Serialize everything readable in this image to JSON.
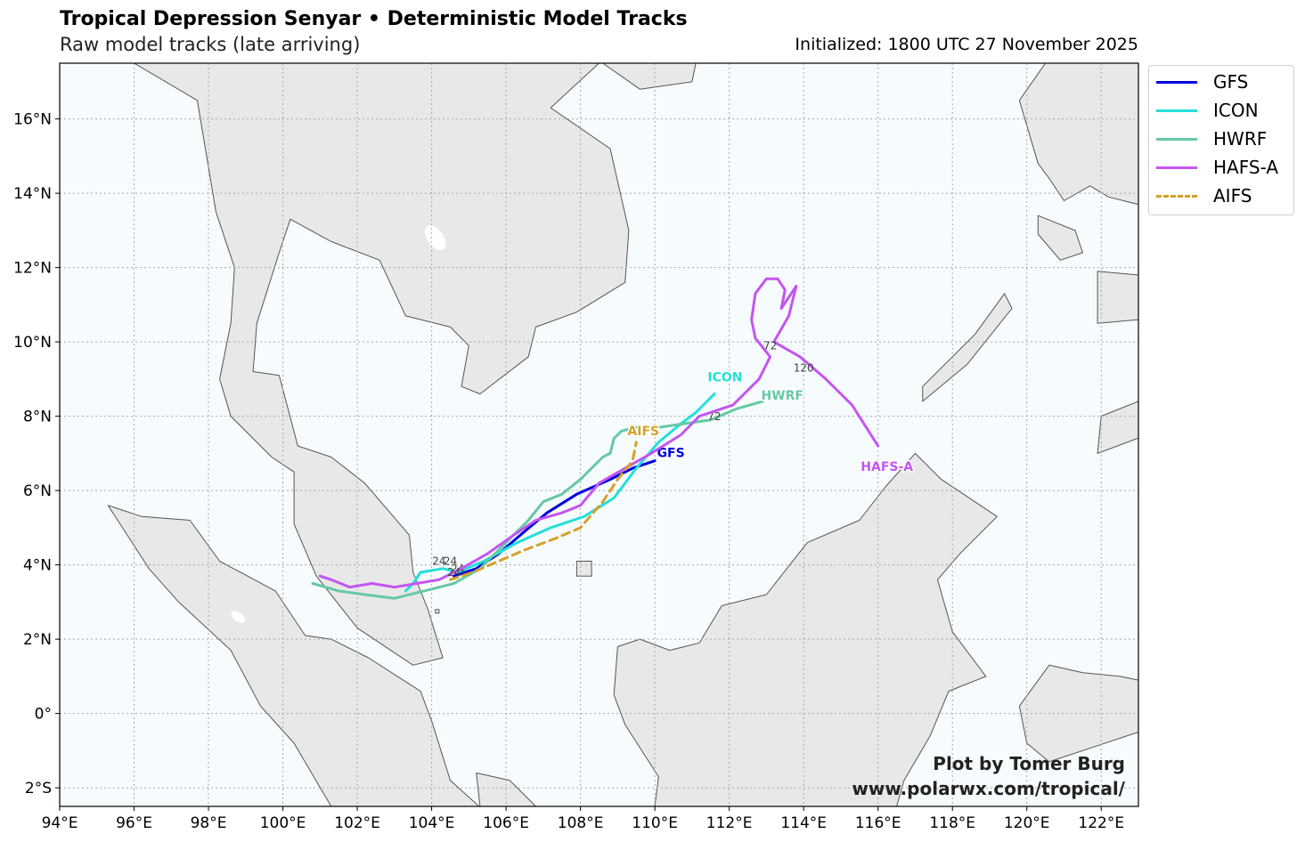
{
  "header": {
    "title": "Tropical Depression Senyar • Deterministic Model Tracks",
    "subtitle": "Raw model tracks (late arriving)",
    "initialized": "Initialized: 1800 UTC 27 November 2025"
  },
  "map": {
    "projection": "PlateCarree",
    "lon_range": [
      94,
      123
    ],
    "lat_range": [
      -2.5,
      17.5
    ],
    "ocean_color": "#f6fbfe",
    "land_color": "#e8e8e8",
    "coast_color": "#555555",
    "grid": "dotted",
    "lon_ticks": [
      "94°E",
      "96°E",
      "98°E",
      "100°E",
      "102°E",
      "104°E",
      "106°E",
      "108°E",
      "110°E",
      "112°E",
      "114°E",
      "116°E",
      "118°E",
      "120°E",
      "122°E"
    ],
    "lat_ticks": [
      "16°N",
      "14°N",
      "12°N",
      "10°N",
      "8°N",
      "6°N",
      "4°N",
      "2°N",
      "0°",
      "2°S"
    ]
  },
  "legend": {
    "position": "outside-right-top",
    "items": [
      {
        "label": "GFS",
        "color": "#0000e0",
        "dash": false
      },
      {
        "label": "ICON",
        "color": "#22e0d8",
        "dash": false
      },
      {
        "label": "HWRF",
        "color": "#66c8a4",
        "dash": false
      },
      {
        "label": "HAFS-A",
        "color": "#c455f0",
        "dash": false
      },
      {
        "label": "AIFS",
        "color": "#d4a02a",
        "dash": true
      }
    ]
  },
  "tracks": [
    {
      "model": "GFS",
      "label": "GFS",
      "color": "#0000e0",
      "points": [
        [
          104.6,
          3.7
        ],
        [
          105.2,
          3.9
        ],
        [
          105.8,
          4.3
        ],
        [
          106.5,
          4.9
        ],
        [
          107.1,
          5.4
        ],
        [
          107.9,
          5.9
        ],
        [
          108.8,
          6.3
        ],
        [
          109.4,
          6.6
        ],
        [
          110.0,
          6.8
        ]
      ],
      "hour_labels": [
        {
          "text": "24",
          "lon": 104.5,
          "lat": 4.0
        }
      ]
    },
    {
      "model": "ICON",
      "label": "ICON",
      "color": "#22e0d8",
      "points": [
        [
          103.3,
          3.3
        ],
        [
          103.5,
          3.5
        ],
        [
          103.7,
          3.8
        ],
        [
          104.3,
          3.9
        ],
        [
          104.7,
          3.8
        ],
        [
          105.4,
          4.1
        ],
        [
          106.3,
          4.6
        ],
        [
          107.2,
          5.0
        ],
        [
          108.1,
          5.3
        ],
        [
          108.9,
          5.8
        ],
        [
          109.5,
          6.6
        ],
        [
          110.1,
          7.3
        ],
        [
          110.7,
          7.8
        ],
        [
          111.1,
          8.1
        ],
        [
          111.6,
          8.6
        ]
      ],
      "hour_labels": [
        {
          "text": "24",
          "lon": 104.2,
          "lat": 4.0
        }
      ]
    },
    {
      "model": "HWRF",
      "label": "HWRF",
      "color": "#66c8a4",
      "points": [
        [
          100.8,
          3.5
        ],
        [
          101.5,
          3.3
        ],
        [
          102.2,
          3.2
        ],
        [
          103.0,
          3.1
        ],
        [
          103.8,
          3.3
        ],
        [
          104.6,
          3.5
        ],
        [
          105.3,
          3.9
        ],
        [
          106.0,
          4.6
        ],
        [
          106.6,
          5.2
        ],
        [
          107.0,
          5.7
        ],
        [
          107.5,
          5.9
        ],
        [
          108.0,
          6.3
        ],
        [
          108.6,
          6.9
        ],
        [
          108.8,
          7.0
        ],
        [
          108.9,
          7.4
        ],
        [
          109.1,
          7.6
        ],
        [
          109.5,
          7.7
        ],
        [
          110.1,
          7.7
        ],
        [
          110.8,
          7.8
        ],
        [
          111.5,
          7.9
        ],
        [
          112.2,
          8.2
        ],
        [
          112.9,
          8.4
        ]
      ],
      "hour_labels": [
        {
          "text": "24",
          "lon": 104.7,
          "lat": 3.8
        },
        {
          "text": "72",
          "lon": 111.6,
          "lat": 7.9
        }
      ]
    },
    {
      "model": "HAFS-A",
      "label": "HAFS-A",
      "color": "#c455f0",
      "points": [
        [
          101.0,
          3.7
        ],
        [
          101.3,
          3.6
        ],
        [
          101.8,
          3.4
        ],
        [
          102.4,
          3.5
        ],
        [
          103.0,
          3.4
        ],
        [
          103.6,
          3.5
        ],
        [
          104.2,
          3.6
        ],
        [
          104.8,
          3.9
        ],
        [
          105.5,
          4.3
        ],
        [
          106.2,
          4.8
        ],
        [
          106.8,
          5.2
        ],
        [
          107.5,
          5.4
        ],
        [
          108.0,
          5.6
        ],
        [
          108.5,
          6.2
        ],
        [
          109.2,
          6.6
        ],
        [
          109.9,
          7.0
        ],
        [
          110.7,
          7.5
        ],
        [
          111.2,
          8.0
        ],
        [
          112.1,
          8.3
        ],
        [
          112.8,
          9.0
        ],
        [
          113.1,
          9.6
        ],
        [
          112.7,
          10.1
        ],
        [
          112.6,
          10.6
        ],
        [
          112.7,
          11.3
        ],
        [
          113.0,
          11.7
        ],
        [
          113.3,
          11.7
        ],
        [
          113.5,
          11.4
        ],
        [
          113.4,
          10.9
        ],
        [
          113.8,
          11.5
        ],
        [
          113.6,
          10.7
        ],
        [
          113.2,
          10.0
        ],
        [
          113.9,
          9.6
        ],
        [
          114.6,
          9.0
        ],
        [
          115.3,
          8.3
        ],
        [
          116.0,
          7.2
        ]
      ],
      "hour_labels": [
        {
          "text": "72",
          "lon": 113.1,
          "lat": 9.8
        },
        {
          "text": "120",
          "lon": 114.0,
          "lat": 9.2
        }
      ]
    },
    {
      "model": "AIFS",
      "label": "AIFS",
      "color": "#d4a02a",
      "dash": true,
      "points": [
        [
          104.5,
          3.6
        ],
        [
          105.1,
          3.8
        ],
        [
          105.8,
          4.1
        ],
        [
          106.5,
          4.4
        ],
        [
          107.3,
          4.7
        ],
        [
          108.0,
          5.0
        ],
        [
          108.6,
          5.7
        ],
        [
          109.0,
          6.3
        ],
        [
          109.4,
          6.8
        ],
        [
          109.5,
          7.3
        ]
      ],
      "hour_labels": [
        {
          "text": "24",
          "lon": 104.6,
          "lat": 3.7
        }
      ]
    }
  ],
  "credit": {
    "line1": "Plot by Tomer Burg",
    "line2": "www.polarwx.com/tropical/"
  }
}
